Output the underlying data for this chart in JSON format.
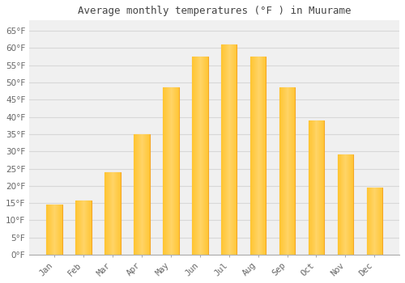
{
  "title": "Average monthly temperatures (°F ) in Muurame",
  "months": [
    "Jan",
    "Feb",
    "Mar",
    "Apr",
    "May",
    "Jun",
    "Jul",
    "Aug",
    "Sep",
    "Oct",
    "Nov",
    "Dec"
  ],
  "values": [
    14.5,
    15.8,
    24.0,
    35.0,
    48.5,
    57.5,
    61.0,
    57.5,
    48.5,
    39.0,
    29.0,
    19.5
  ],
  "bar_color_main": "#FFC125",
  "bar_color_edge": "#F5A623",
  "background_color": "#ffffff",
  "plot_bg_color": "#f0f0f0",
  "grid_color": "#d8d8d8",
  "ylim": [
    0,
    68
  ],
  "yticks": [
    0,
    5,
    10,
    15,
    20,
    25,
    30,
    35,
    40,
    45,
    50,
    55,
    60,
    65
  ],
  "title_fontsize": 9,
  "tick_fontsize": 7.5,
  "title_color": "#444444",
  "tick_color": "#666666"
}
